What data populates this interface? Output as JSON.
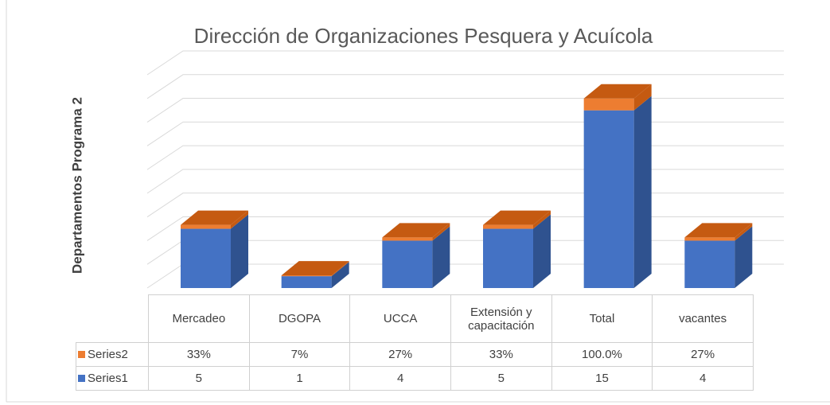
{
  "chart_data": {
    "type": "bar3d_stacked",
    "title": "Dirección de Organizaciones Pesquera y Acuícola",
    "y_label": "Departamentos Programa 2",
    "categories": [
      "Mercadeo",
      "DGOPA",
      "UCCA",
      "Extensión y capacitación",
      "Total",
      "vacantes"
    ],
    "series": [
      {
        "name": "Series1",
        "color": "#4472c4",
        "side_color": "#2f528f",
        "top_color": "#5b86d6",
        "values": [
          5,
          1,
          4,
          5,
          15,
          4
        ]
      },
      {
        "name": "Series2",
        "color": "#ed7d31",
        "side_color": "#c55a11",
        "top_color": "#c55a11",
        "values": [
          0.33,
          0.07,
          0.27,
          0.33,
          1,
          0.27
        ],
        "value_labels": [
          "33%",
          "7%",
          "27%",
          "33%",
          "100.0%",
          "27%"
        ]
      }
    ],
    "ylim": [
      0,
      18
    ],
    "yticks": [
      0,
      2,
      4,
      6,
      8,
      10,
      12,
      14,
      16,
      18
    ],
    "grid": true
  }
}
